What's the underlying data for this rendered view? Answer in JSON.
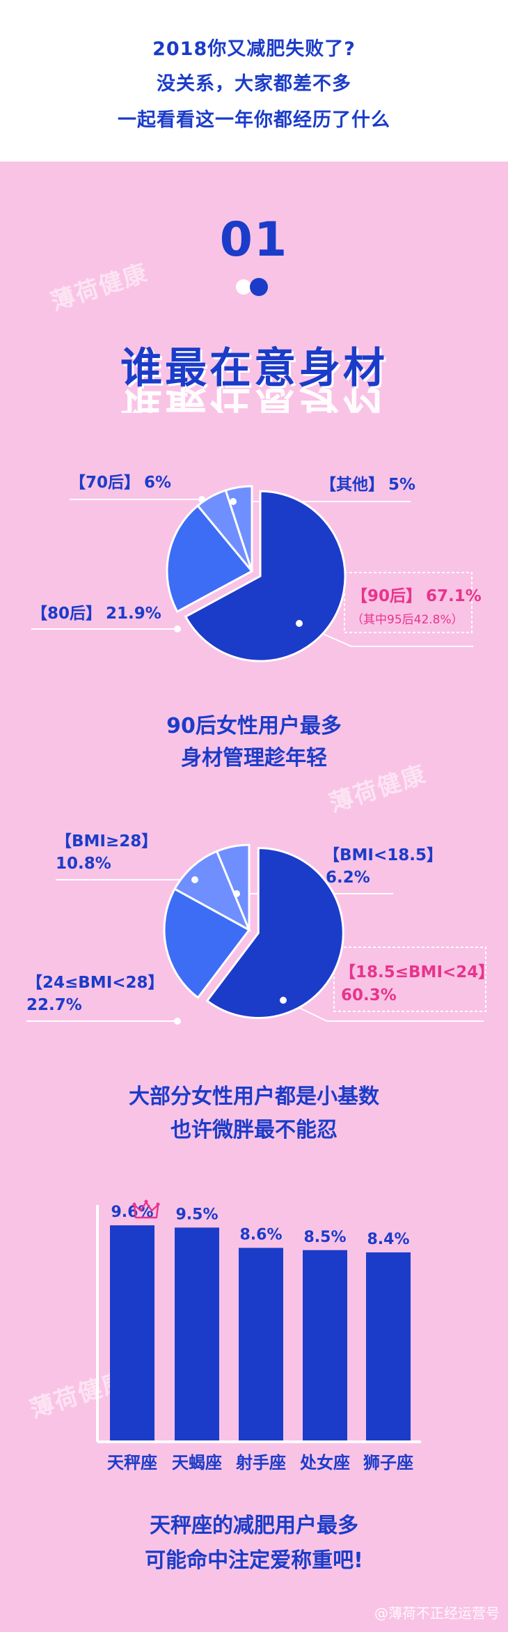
{
  "header": {
    "lines": [
      "2018你又减肥失败了?",
      "没关系，大家都差不多",
      "一起看看这一年你都经历了什么"
    ]
  },
  "section": {
    "number": "01",
    "title": "谁最在意身材"
  },
  "watermark": "薄荷健康",
  "colors": {
    "primary": "#1b3cc9",
    "mid": "#3d6df5",
    "light": "#6f8fff",
    "highlight": "#e8348c",
    "background": "#f9c3e6"
  },
  "chart_data": [
    {
      "type": "pie",
      "slices": [
        {
          "label": "【90后】",
          "value": 67.1,
          "display": "67.1%",
          "note": "（其中95后42.8%）",
          "highlight": true
        },
        {
          "label": "【80后】",
          "value": 21.9,
          "display": "21.9%"
        },
        {
          "label": "【70后】",
          "value": 6,
          "display": "6%"
        },
        {
          "label": "【其他】",
          "value": 5,
          "display": "5%"
        }
      ],
      "caption": [
        "90后女性用户最多",
        "身材管理趁年轻"
      ]
    },
    {
      "type": "pie",
      "slices": [
        {
          "label": "【18.5≤BMI<24】",
          "value": 60.3,
          "display": "60.3%",
          "highlight": true
        },
        {
          "label": "【24≤BMI<28】",
          "value": 22.7,
          "display": "22.7%"
        },
        {
          "label": "【BMI≥28】",
          "value": 10.8,
          "display": "10.8%"
        },
        {
          "label": "【BMI<18.5】",
          "value": 6.2,
          "display": "6.2%"
        }
      ],
      "caption": [
        "大部分女性用户都是小基数",
        "也许微胖最不能忍"
      ]
    },
    {
      "type": "bar",
      "categories": [
        "天秤座",
        "天蝎座",
        "射手座",
        "处女座",
        "狮子座"
      ],
      "values": [
        9.6,
        9.5,
        8.6,
        8.5,
        8.4
      ],
      "value_labels": [
        "9.6%",
        "9.5%",
        "8.6%",
        "8.5%",
        "8.4%"
      ],
      "ylim": [
        0,
        10.5
      ],
      "caption": [
        "天秤座的减肥用户最多",
        "可能命中注定爱称重吧!"
      ]
    }
  ],
  "footer": "@薄荷不正经运营号"
}
